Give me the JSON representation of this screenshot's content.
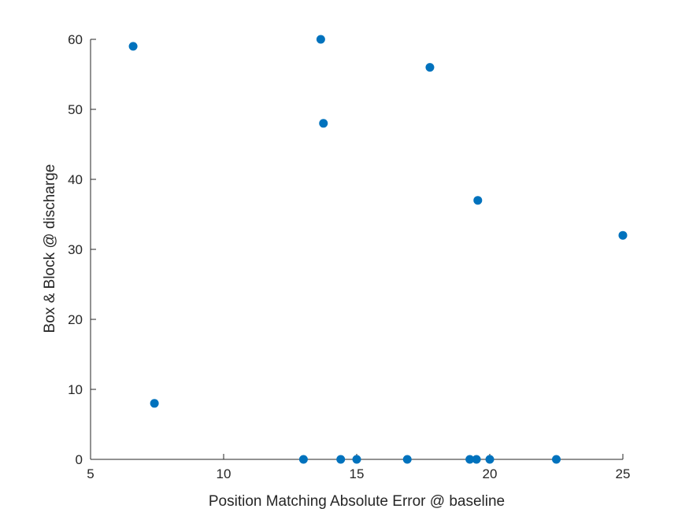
{
  "chart_data": {
    "type": "scatter",
    "xlabel": "Position Matching Absolute Error @ baseline",
    "ylabel": "Box & Block @ discharge",
    "xlim": [
      5,
      25
    ],
    "ylim": [
      0,
      60
    ],
    "xticks": [
      5,
      10,
      15,
      20,
      25
    ],
    "yticks": [
      0,
      10,
      20,
      30,
      40,
      50,
      60
    ],
    "grid": false,
    "box": false,
    "marker_color": "#0072BD",
    "axis_color": "#262626",
    "series": [
      {
        "points": [
          {
            "x": 6.6,
            "y": 59
          },
          {
            "x": 7.4,
            "y": 8
          },
          {
            "x": 13.0,
            "y": 0
          },
          {
            "x": 13.65,
            "y": 60
          },
          {
            "x": 13.75,
            "y": 48
          },
          {
            "x": 14.4,
            "y": 0
          },
          {
            "x": 15.0,
            "y": 0
          },
          {
            "x": 16.9,
            "y": 0
          },
          {
            "x": 17.75,
            "y": 56
          },
          {
            "x": 19.25,
            "y": 0
          },
          {
            "x": 19.5,
            "y": 0
          },
          {
            "x": 19.55,
            "y": 37
          },
          {
            "x": 20.0,
            "y": 0
          },
          {
            "x": 22.5,
            "y": 0
          },
          {
            "x": 25.0,
            "y": 32
          }
        ]
      }
    ]
  }
}
